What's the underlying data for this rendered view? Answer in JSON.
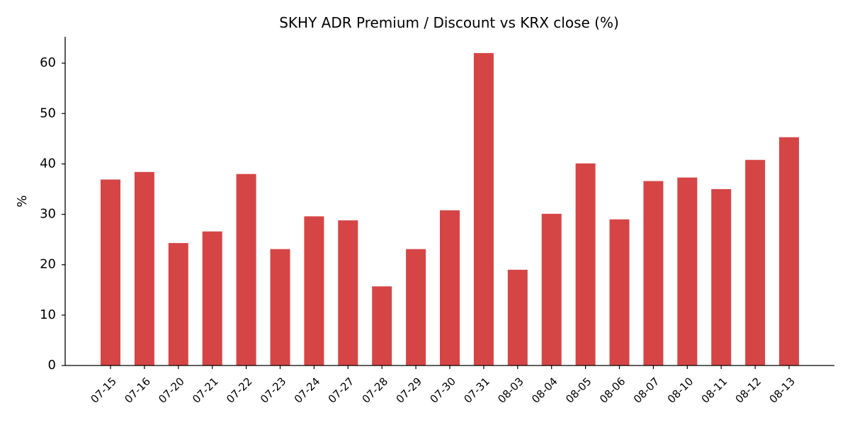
{
  "chart_data": {
    "type": "bar",
    "title": "SKHY ADR Premium / Discount vs KRX close (%)",
    "xlabel": "",
    "ylabel": "%",
    "categories": [
      "07-15",
      "07-16",
      "07-20",
      "07-21",
      "07-22",
      "07-23",
      "07-24",
      "07-27",
      "07-28",
      "07-29",
      "07-30",
      "07-31",
      "08-03",
      "08-04",
      "08-05",
      "08-06",
      "08-07",
      "08-10",
      "08-11",
      "08-12",
      "08-13"
    ],
    "values": [
      36.9,
      38.4,
      24.3,
      26.6,
      38.0,
      23.1,
      29.6,
      28.8,
      15.7,
      23.1,
      30.8,
      62.0,
      19.0,
      30.1,
      40.1,
      29.0,
      36.6,
      37.3,
      35.0,
      40.8,
      45.3
    ],
    "yticks": [
      0,
      10,
      20,
      30,
      40,
      50,
      60
    ],
    "ylim": [
      0,
      65
    ],
    "bar_color": "#d64545",
    "grid": false,
    "legend": "none"
  }
}
